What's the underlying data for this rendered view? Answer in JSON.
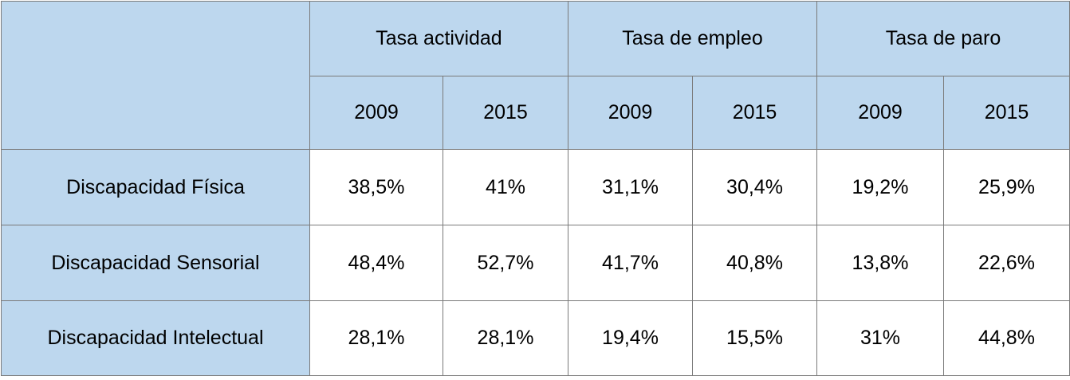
{
  "table": {
    "groups": [
      "Tasa actividad",
      "Tasa de empleo",
      "Tasa de paro"
    ],
    "years": [
      "2009",
      "2015",
      "2009",
      "2015",
      "2009",
      "2015"
    ],
    "rows": [
      {
        "label": "Discapacidad Física",
        "cells": [
          "38,5%",
          "41%",
          "31,1%",
          "30,4%",
          "19,2%",
          "25,9%"
        ]
      },
      {
        "label": "Discapacidad Sensorial",
        "cells": [
          "48,4%",
          "52,7%",
          "41,7%",
          "40,8%",
          "13,8%",
          "22,6%"
        ]
      },
      {
        "label": "Discapacidad Intelectual",
        "cells": [
          "28,1%",
          "28,1%",
          "19,4%",
          "15,5%",
          "31%",
          "44,8%"
        ]
      }
    ]
  }
}
